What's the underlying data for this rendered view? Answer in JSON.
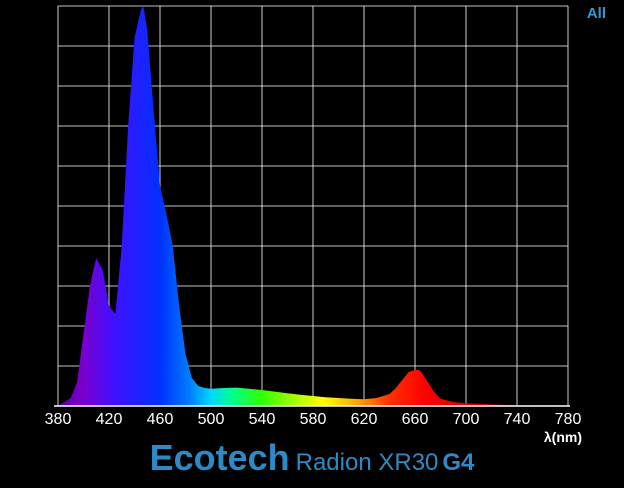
{
  "chart_data": {
    "type": "area",
    "xlim": [
      380,
      780
    ],
    "ylim": [
      0,
      1
    ],
    "x_ticks": [
      "380",
      "420",
      "460",
      "500",
      "540",
      "580",
      "620",
      "660",
      "700",
      "740",
      "780"
    ],
    "xlabel": "λ(nm)",
    "legend": "All",
    "grid": true,
    "background": "#000000",
    "grid_color": "#ffffff",
    "x": [
      380,
      390,
      395,
      400,
      405,
      410,
      415,
      420,
      425,
      430,
      435,
      440,
      445,
      447,
      450,
      455,
      460,
      465,
      470,
      475,
      480,
      485,
      490,
      495,
      500,
      510,
      520,
      530,
      540,
      550,
      560,
      570,
      580,
      590,
      600,
      610,
      620,
      630,
      640,
      645,
      650,
      655,
      660,
      663,
      665,
      670,
      675,
      680,
      690,
      700,
      720,
      740,
      760,
      780
    ],
    "y": [
      0.0,
      0.02,
      0.06,
      0.18,
      0.3,
      0.37,
      0.34,
      0.25,
      0.23,
      0.4,
      0.7,
      0.92,
      0.99,
      1.0,
      0.94,
      0.74,
      0.55,
      0.48,
      0.4,
      0.25,
      0.13,
      0.07,
      0.05,
      0.045,
      0.043,
      0.045,
      0.046,
      0.043,
      0.04,
      0.036,
      0.032,
      0.028,
      0.025,
      0.022,
      0.02,
      0.018,
      0.017,
      0.02,
      0.03,
      0.045,
      0.065,
      0.085,
      0.09,
      0.09,
      0.085,
      0.06,
      0.035,
      0.018,
      0.01,
      0.007,
      0.004,
      0.002,
      0.001,
      0.0
    ]
  },
  "brand": {
    "name": "Ecotech",
    "model": "Radion XR30",
    "generation": "G4"
  }
}
